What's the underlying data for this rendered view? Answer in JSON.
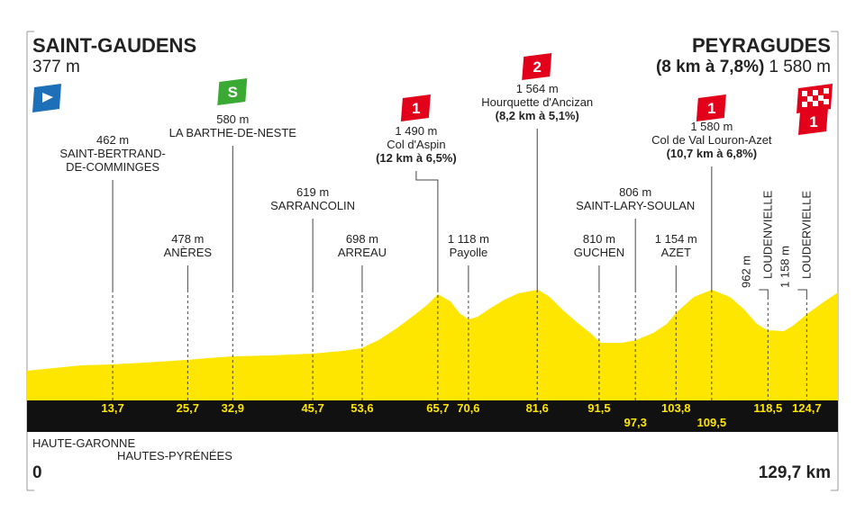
{
  "start": {
    "name": "SAINT-GAUDENS",
    "altitude": "377 m",
    "km": "0"
  },
  "finish": {
    "name": "PEYRAGUDES",
    "climb": "(8 km à 7,8%)",
    "altitude": "1 580 m",
    "km": "129,7 km",
    "badge": "1"
  },
  "waypoints": [
    {
      "altitude": "462 m",
      "name": [
        "SAINT-BERTRAND-",
        "DE-COMMINGES"
      ],
      "km": "13,7"
    },
    {
      "altitude": "478 m",
      "name": [
        "ANÈRES"
      ],
      "km": "25,7"
    },
    {
      "altitude": "580 m",
      "name": [
        "LA BARTHE-DE-NESTE"
      ],
      "km": "32,9",
      "badge": "S"
    },
    {
      "altitude": "619 m",
      "name": [
        "SARRANCOLIN"
      ],
      "km": "45,7"
    },
    {
      "altitude": "698 m",
      "name": [
        "ARREAU"
      ],
      "km": "53,6"
    },
    {
      "altitude": "1 490 m",
      "name": [
        "Col d'Aspin"
      ],
      "climb": "(12 km à 6,5%)",
      "km": "65,7",
      "badge": "1"
    },
    {
      "altitude": "1 118 m",
      "name": [
        "Payolle"
      ],
      "km": "70,6"
    },
    {
      "altitude": "1 564 m",
      "name": [
        "Hourquette d'Ancizan"
      ],
      "climb": "(8,2 km à 5,1%)",
      "km": "81,6",
      "badge": "2"
    },
    {
      "altitude": "810 m",
      "name": [
        "GUCHEN"
      ],
      "km": "91,5"
    },
    {
      "altitude": "806 m",
      "name": [
        "SAINT-LARY-SOULAN"
      ],
      "km": "97,3"
    },
    {
      "altitude": "1 154 m",
      "name": [
        "AZET"
      ],
      "km": "103,8"
    },
    {
      "altitude": "1 580 m",
      "name": [
        "Col de Val Louron-Azet"
      ],
      "climb": "(10,7 km à 6,8%)",
      "km": "109,5",
      "badge": "1"
    },
    {
      "altitude": "962 m",
      "name": [
        "LOUDENVIELLE"
      ],
      "km": "118,5"
    },
    {
      "altitude": "1 158 m",
      "name": [
        "LOUDERVIELLE"
      ],
      "km": "124,7"
    }
  ],
  "regions": [
    "HAUTE-GARONNE",
    "HAUTES-PYRÉNÉES"
  ]
}
